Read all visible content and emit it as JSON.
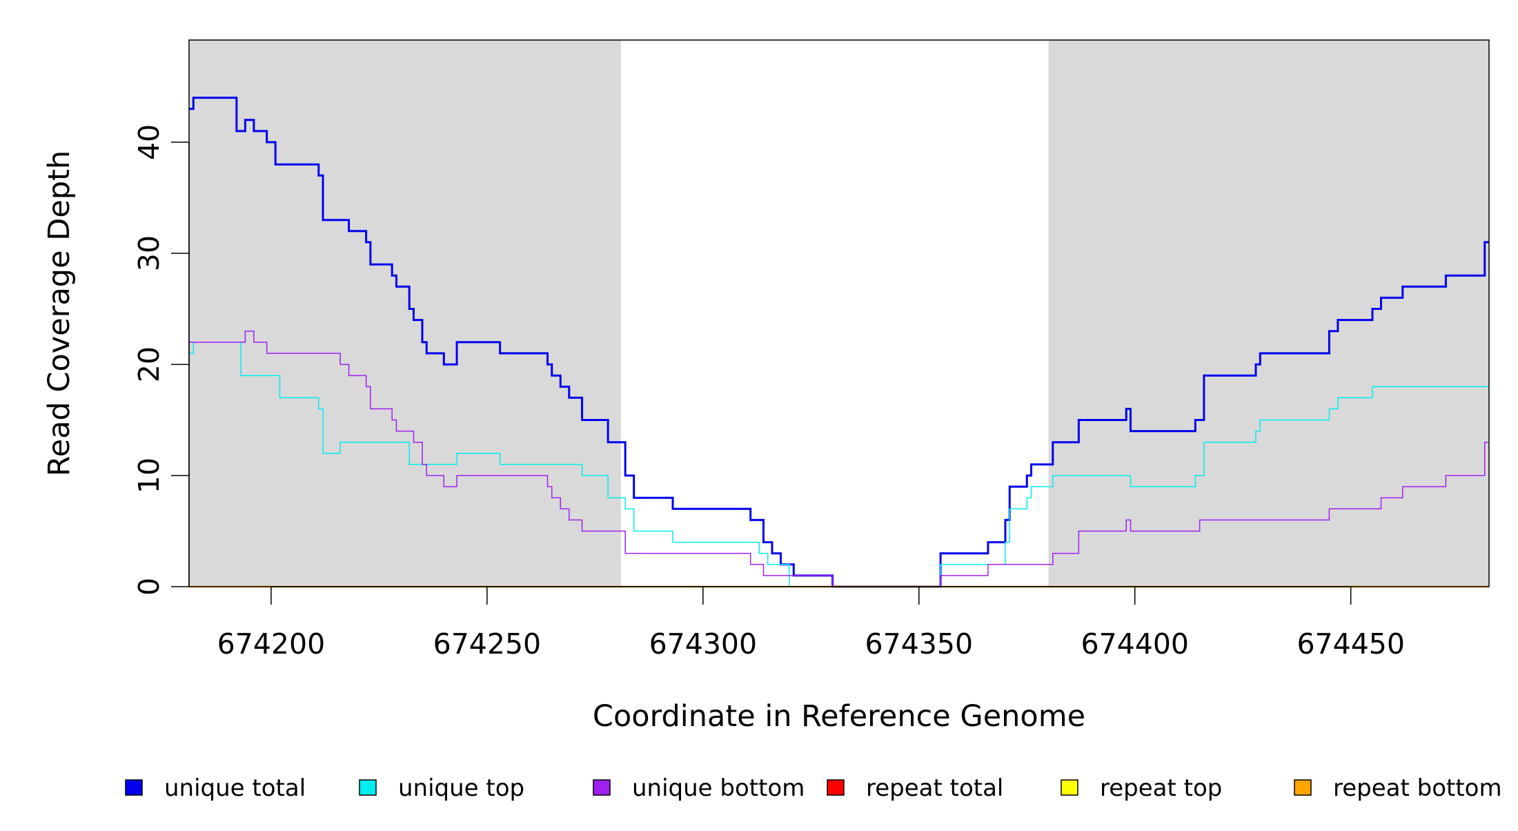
{
  "chart_data": {
    "type": "line",
    "title": "",
    "xlabel": "Coordinate in Reference Genome",
    "ylabel": "Read Coverage Depth",
    "xlim": [
      674181,
      674482
    ],
    "ylim": [
      0,
      49
    ],
    "xticks": [
      674200,
      674250,
      674300,
      674350,
      674400,
      674450
    ],
    "xtick_labels": [
      "674200",
      "674250",
      "674300",
      "674350",
      "674400",
      "674450"
    ],
    "yticks": [
      0,
      10,
      20,
      30,
      40
    ],
    "ytick_labels": [
      "0",
      "10",
      "20",
      "30",
      "40"
    ],
    "shaded_regions": [
      {
        "from": 674181,
        "to": 674281,
        "color": "#d9d9d9"
      },
      {
        "from": 674380,
        "to": 674482,
        "color": "#d9d9d9"
      }
    ],
    "legend_position": "bottom",
    "grid": false,
    "series": [
      {
        "name": "unique total",
        "color": "#0000ee",
        "width": 3,
        "points": [
          [
            674181,
            43
          ],
          [
            674182,
            44
          ],
          [
            674192,
            41
          ],
          [
            674194,
            42
          ],
          [
            674196,
            41
          ],
          [
            674199,
            40
          ],
          [
            674201,
            38
          ],
          [
            674211,
            37
          ],
          [
            674212,
            33
          ],
          [
            674218,
            32
          ],
          [
            674222,
            31
          ],
          [
            674223,
            29
          ],
          [
            674228,
            28
          ],
          [
            674229,
            27
          ],
          [
            674232,
            25
          ],
          [
            674233,
            24
          ],
          [
            674235,
            22
          ],
          [
            674236,
            21
          ],
          [
            674240,
            20
          ],
          [
            674243,
            22
          ],
          [
            674253,
            21
          ],
          [
            674264,
            20
          ],
          [
            674265,
            19
          ],
          [
            674267,
            18
          ],
          [
            674269,
            17
          ],
          [
            674272,
            15
          ],
          [
            674278,
            13
          ],
          [
            674282,
            10
          ],
          [
            674284,
            8
          ],
          [
            674293,
            7
          ],
          [
            674311,
            6
          ],
          [
            674314,
            4
          ],
          [
            674316,
            3
          ],
          [
            674318,
            2
          ],
          [
            674321,
            1
          ],
          [
            674330,
            0
          ],
          [
            674355,
            3
          ],
          [
            674366,
            4
          ],
          [
            674370,
            6
          ],
          [
            674371,
            9
          ],
          [
            674375,
            10
          ],
          [
            674376,
            11
          ],
          [
            674381,
            13
          ],
          [
            674387,
            15
          ],
          [
            674398,
            16
          ],
          [
            674399,
            14
          ],
          [
            674414,
            15
          ],
          [
            674416,
            19
          ],
          [
            674428,
            20
          ],
          [
            674429,
            21
          ],
          [
            674445,
            23
          ],
          [
            674447,
            24
          ],
          [
            674455,
            25
          ],
          [
            674457,
            26
          ],
          [
            674462,
            27
          ],
          [
            674472,
            28
          ],
          [
            674481,
            31
          ]
        ]
      },
      {
        "name": "unique top",
        "color": "#00eeee",
        "width": 1.5,
        "points": [
          [
            674181,
            21
          ],
          [
            674182,
            22
          ],
          [
            674193,
            19
          ],
          [
            674202,
            17
          ],
          [
            674211,
            16
          ],
          [
            674212,
            12
          ],
          [
            674216,
            13
          ],
          [
            674232,
            11
          ],
          [
            674243,
            12
          ],
          [
            674253,
            11
          ],
          [
            674272,
            10
          ],
          [
            674278,
            8
          ],
          [
            674282,
            7
          ],
          [
            674284,
            5
          ],
          [
            674293,
            4
          ],
          [
            674313,
            3
          ],
          [
            674315,
            2
          ],
          [
            674320,
            0
          ],
          [
            674355,
            2
          ],
          [
            674370,
            4
          ],
          [
            674371,
            7
          ],
          [
            674375,
            8
          ],
          [
            674376,
            9
          ],
          [
            674381,
            10
          ],
          [
            674399,
            9
          ],
          [
            674414,
            10
          ],
          [
            674416,
            13
          ],
          [
            674428,
            14
          ],
          [
            674429,
            15
          ],
          [
            674445,
            16
          ],
          [
            674447,
            17
          ],
          [
            674455,
            18
          ],
          [
            674482,
            18
          ]
        ]
      },
      {
        "name": "unique bottom",
        "color": "#a020f0",
        "width": 1.5,
        "points": [
          [
            674181,
            22
          ],
          [
            674194,
            23
          ],
          [
            674196,
            22
          ],
          [
            674199,
            21
          ],
          [
            674216,
            20
          ],
          [
            674218,
            19
          ],
          [
            674222,
            18
          ],
          [
            674223,
            16
          ],
          [
            674228,
            15
          ],
          [
            674229,
            14
          ],
          [
            674233,
            13
          ],
          [
            674235,
            11
          ],
          [
            674236,
            10
          ],
          [
            674240,
            9
          ],
          [
            674243,
            10
          ],
          [
            674264,
            9
          ],
          [
            674265,
            8
          ],
          [
            674267,
            7
          ],
          [
            674269,
            6
          ],
          [
            674272,
            5
          ],
          [
            674282,
            3
          ],
          [
            674311,
            2
          ],
          [
            674314,
            1
          ],
          [
            674321,
            1
          ],
          [
            674330,
            0
          ],
          [
            674355,
            1
          ],
          [
            674366,
            2
          ],
          [
            674381,
            3
          ],
          [
            674387,
            5
          ],
          [
            674398,
            6
          ],
          [
            674399,
            5
          ],
          [
            674415,
            6
          ],
          [
            674445,
            7
          ],
          [
            674457,
            8
          ],
          [
            674462,
            9
          ],
          [
            674472,
            10
          ],
          [
            674481,
            13
          ]
        ]
      },
      {
        "name": "repeat total",
        "color": "#ff0000",
        "width": 2,
        "points": [
          [
            674181,
            0
          ],
          [
            674482,
            0
          ]
        ]
      },
      {
        "name": "repeat top",
        "color": "#ffff00",
        "width": 2,
        "points": [
          [
            674181,
            0
          ],
          [
            674482,
            0
          ]
        ]
      },
      {
        "name": "repeat bottom",
        "color": "#ffa500",
        "width": 2.5,
        "points": [
          [
            674181,
            0
          ],
          [
            674482,
            0
          ]
        ]
      }
    ],
    "legend": [
      {
        "label": "unique total",
        "color": "#0000ee"
      },
      {
        "label": "unique top",
        "color": "#00eeee"
      },
      {
        "label": "unique bottom",
        "color": "#a020f0"
      },
      {
        "label": "repeat total",
        "color": "#ff0000"
      },
      {
        "label": "repeat top",
        "color": "#ffff00"
      },
      {
        "label": "repeat bottom",
        "color": "#ffa500"
      }
    ]
  }
}
